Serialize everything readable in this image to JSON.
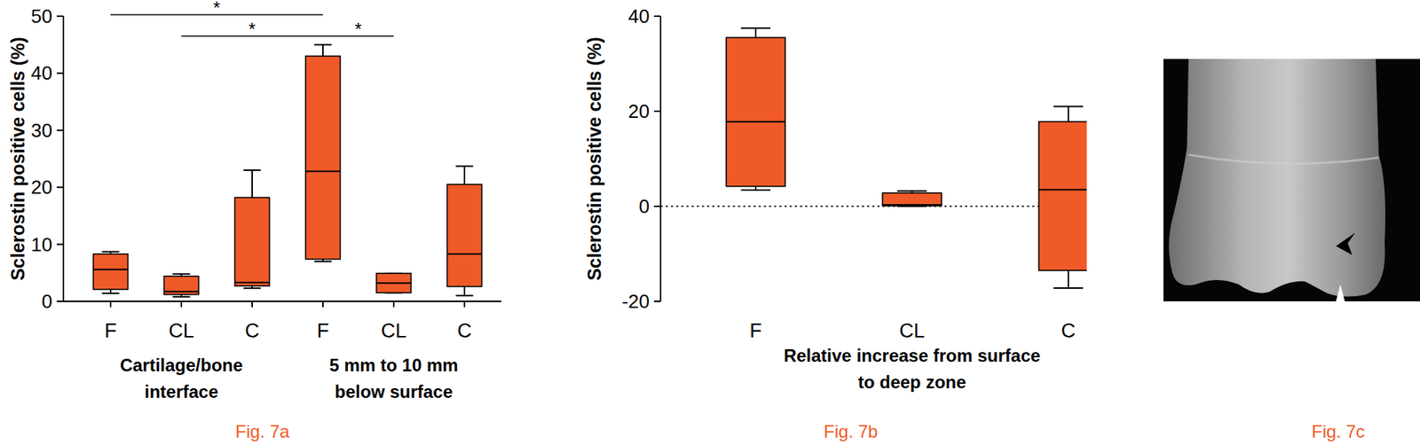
{
  "chart_data": [
    {
      "type": "box",
      "title": "Fig. 7a",
      "ylabel": "Sclerostin positive cells (%)",
      "categories": [
        "F",
        "CL",
        "C",
        "F",
        "CL",
        "C"
      ],
      "x_group_labels": [
        [
          "Cartilage/bone",
          "interface"
        ],
        [
          "5 mm to 10 mm",
          "below surface"
        ]
      ],
      "min": [
        1.4,
        0.8,
        2.3,
        7.0,
        1.5,
        1.0
      ],
      "q1": [
        2.1,
        1.2,
        2.7,
        7.4,
        1.5,
        2.6
      ],
      "median": [
        5.6,
        1.7,
        3.3,
        22.8,
        3.2,
        8.3
      ],
      "q3": [
        8.3,
        4.4,
        18.2,
        43.0,
        4.9,
        20.5
      ],
      "max": [
        8.7,
        4.8,
        23.0,
        45.0,
        4.9,
        23.7
      ],
      "color": "#f05a28",
      "ylim": [
        0,
        50
      ],
      "yticks": [
        0,
        10,
        20,
        30,
        40,
        50
      ],
      "annotations": [
        {
          "text": "*",
          "from": 0,
          "to": 3
        },
        {
          "text": "*",
          "from": 1,
          "to": 3
        },
        {
          "text": "*",
          "from": 3,
          "to": 4
        }
      ]
    },
    {
      "type": "box",
      "title": "Fig. 7b",
      "ylabel": "Sclerostin positive cells (%)",
      "xlabel": [
        "Relative increase from surface",
        "to deep zone"
      ],
      "categories": [
        "F",
        "CL",
        "C"
      ],
      "min": [
        3.4,
        0.0,
        -17.2
      ],
      "q1": [
        4.2,
        0.1,
        -13.5
      ],
      "median": [
        17.8,
        0.3,
        3.5
      ],
      "q3": [
        35.5,
        2.8,
        17.8
      ],
      "max": [
        37.5,
        3.2,
        21.0
      ],
      "color": "#f05a28",
      "ylim": [
        -20,
        40
      ],
      "yticks": [
        -20,
        0,
        20,
        40
      ],
      "reference_line": 0
    },
    {
      "type": "image",
      "title": "Fig. 7c"
    }
  ]
}
